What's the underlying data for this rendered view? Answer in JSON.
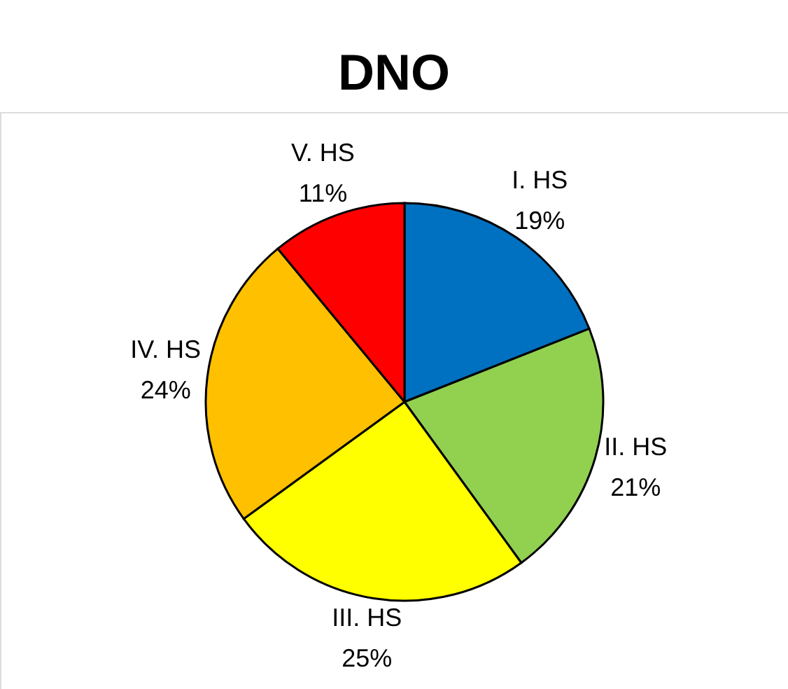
{
  "chart_data": {
    "type": "pie",
    "title": "DNO",
    "categories": [
      "I.  HS",
      "II.  HS",
      "III. HS",
      "IV. HS",
      "V.  HS"
    ],
    "values": [
      19,
      21,
      25,
      24,
      11
    ],
    "value_labels": [
      "19%",
      "21%",
      "25%",
      "24%",
      "11%"
    ],
    "colors": [
      "#0070c0",
      "#92d050",
      "#ffff00",
      "#ffc000",
      "#ff0000"
    ],
    "legend": false
  }
}
